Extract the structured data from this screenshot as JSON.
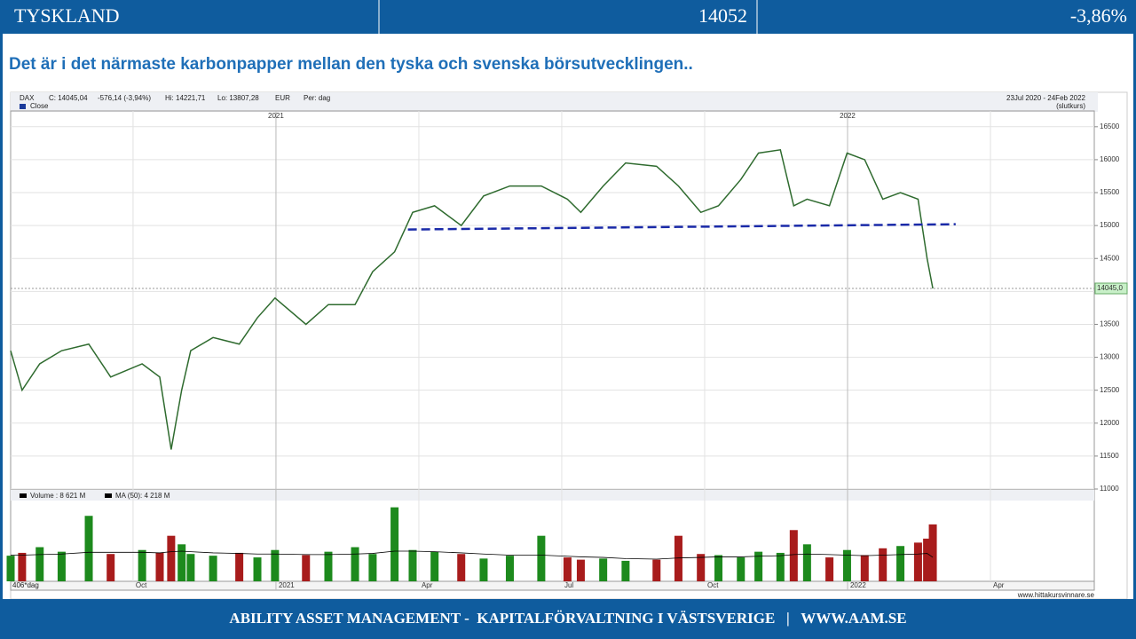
{
  "header": {
    "title": "TYSKLAND",
    "value": 14052,
    "change": "-3,86%"
  },
  "subtitle": "Det är i det närmaste karbonpapper mellan den tyska och svenska börsutvecklingen..",
  "footer": "ABILITY ASSET MANAGEMENT -  KAPITALFÖRVALTNING I VÄSTSVERIGE   |   WWW.AAM.SE",
  "chart_data": {
    "type": "line",
    "info": [
      "DAX",
      "C: 14045,04",
      "-576,14 (-3,94%)",
      "Hi: 14221,71",
      "Lo: 13807,28",
      "EUR",
      "Per: dag"
    ],
    "range": "23Jul 2020 - 24Feb 2022",
    "range_note": "(slutkurs)",
    "period_label": "406*dag",
    "source": "www.hittakursvinnare.se",
    "xlim": [
      -2.57,
      20.18
    ],
    "xticks": [
      {
        "value": 0,
        "label": "Oct"
      },
      {
        "value": 3,
        "label": "2021"
      },
      {
        "value": 6,
        "label": "Apr"
      },
      {
        "value": 9,
        "label": "Jul"
      },
      {
        "value": 12,
        "label": "Oct"
      },
      {
        "value": 15,
        "label": "2022"
      },
      {
        "value": 18,
        "label": "Apr"
      }
    ],
    "year_marks": [
      {
        "value": 3,
        "label": "2021"
      },
      {
        "value": 15,
        "label": "2022"
      }
    ],
    "ylim": [
      11000,
      16740
    ],
    "yticks": [
      11000,
      11500,
      12000,
      12500,
      13000,
      13500,
      14000,
      14500,
      15000,
      15500,
      16000,
      16500
    ],
    "grid": true,
    "x": [
      -2.57,
      -2.33,
      -1.96,
      -1.5,
      -0.93,
      -0.47,
      0.19,
      0.56,
      0.8,
      1.02,
      1.21,
      1.68,
      2.23,
      2.61,
      2.98,
      3.63,
      4.1,
      4.66,
      5.03,
      5.49,
      5.87,
      6.33,
      6.89,
      7.36,
      7.91,
      8.57,
      9.12,
      9.4,
      9.87,
      10.34,
      10.99,
      11.45,
      11.92,
      12.29,
      12.76,
      13.13,
      13.59,
      13.87,
      14.15,
      14.62,
      14.99,
      15.36,
      15.74,
      16.11,
      16.48,
      16.67,
      16.79
    ],
    "series": [
      {
        "name": "Close",
        "color": "#2f6b2f",
        "values": [
          13100,
          12500,
          12900,
          13100,
          13200,
          12700,
          12900,
          12700,
          11600,
          12500,
          13100,
          13300,
          13200,
          13600,
          13900,
          13500,
          13800,
          13800,
          14300,
          14600,
          15200,
          15300,
          15000,
          15450,
          15600,
          15600,
          15400,
          15200,
          15600,
          15950,
          15900,
          15600,
          15200,
          15300,
          15700,
          16100,
          16150,
          15300,
          15400,
          15300,
          16100,
          16000,
          15400,
          15500,
          15400,
          14500,
          14045
        ]
      }
    ],
    "last_label": "14045,0",
    "support_line": {
      "x": [
        5.77,
        17.27
      ],
      "y": [
        14940,
        15020
      ],
      "color": "#1a2aa8"
    },
    "volume": {
      "legend": "Volume : 8 621 M",
      "ylim": [
        0,
        14500
      ],
      "up_color": "#1d8a1d",
      "down_color": "#a81c1c",
      "values": [
        4500,
        5000,
        6000,
        5200,
        11500,
        4800,
        5500,
        5000,
        8000,
        6500,
        4800,
        4500,
        5000,
        4200,
        5500,
        4600,
        5200,
        6000,
        4800,
        13000,
        5500,
        5200,
        4800,
        4000,
        4500,
        8000,
        4200,
        3800,
        4000,
        3600,
        3800,
        8000,
        4800,
        4600,
        4200,
        5200,
        5000,
        9000,
        6500,
        4200,
        5500,
        4600,
        5800,
        6200,
        6800,
        7500,
        10000
      ]
    },
    "ma": {
      "legend": "MA (50): 4 218 M",
      "color": "#000000",
      "values": [
        4600,
        4600,
        4700,
        4800,
        5100,
        5100,
        5100,
        5000,
        5200,
        5300,
        5200,
        5000,
        4900,
        4800,
        4800,
        4700,
        4700,
        4800,
        4900,
        5300,
        5300,
        5200,
        5000,
        4800,
        4600,
        4600,
        4400,
        4300,
        4200,
        4000,
        3900,
        4100,
        4200,
        4300,
        4300,
        4400,
        4500,
        4700,
        4800,
        4700,
        4600,
        4500,
        4600,
        4700,
        4800,
        4900,
        4218
      ]
    }
  }
}
